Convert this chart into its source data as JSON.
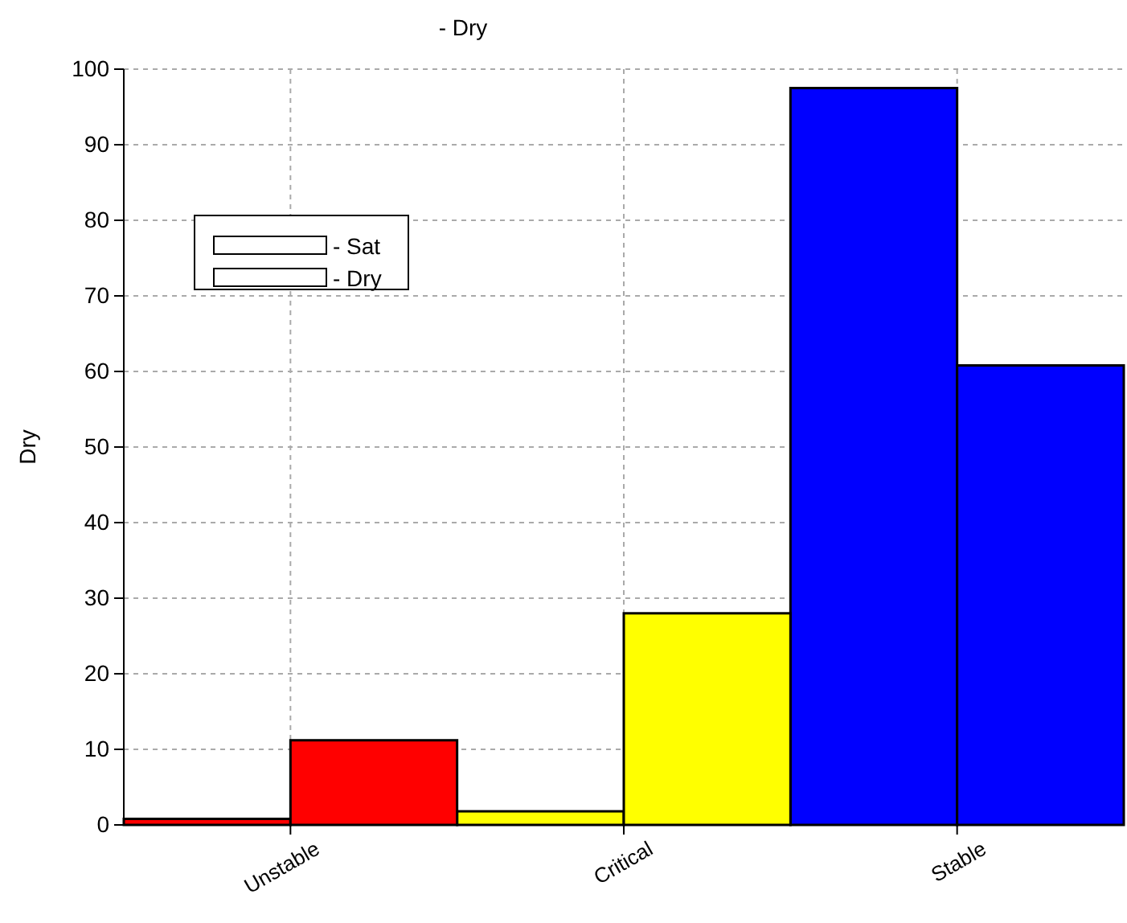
{
  "chart_data": {
    "type": "bar",
    "title": "- Dry",
    "ylabel": "Dry",
    "categories": [
      "Unstable",
      "Critical",
      "Stable"
    ],
    "series": [
      {
        "name": "- Sat",
        "color": "#ffffff",
        "colors": [
          "#ff0000",
          "#ffff00",
          "#0000ff"
        ],
        "values": [
          0.8,
          1.8,
          97.5
        ]
      },
      {
        "name": "- Dry",
        "color": "#ffffff",
        "colors": [
          "#ff0000",
          "#ffff00",
          "#0000ff"
        ],
        "values": [
          11.2,
          28,
          60.8
        ]
      }
    ],
    "ylim": [
      0,
      100
    ],
    "yticks": [
      0,
      10,
      20,
      30,
      40,
      50,
      60,
      70,
      80,
      90,
      100
    ],
    "grid": true,
    "legend": "top left"
  }
}
